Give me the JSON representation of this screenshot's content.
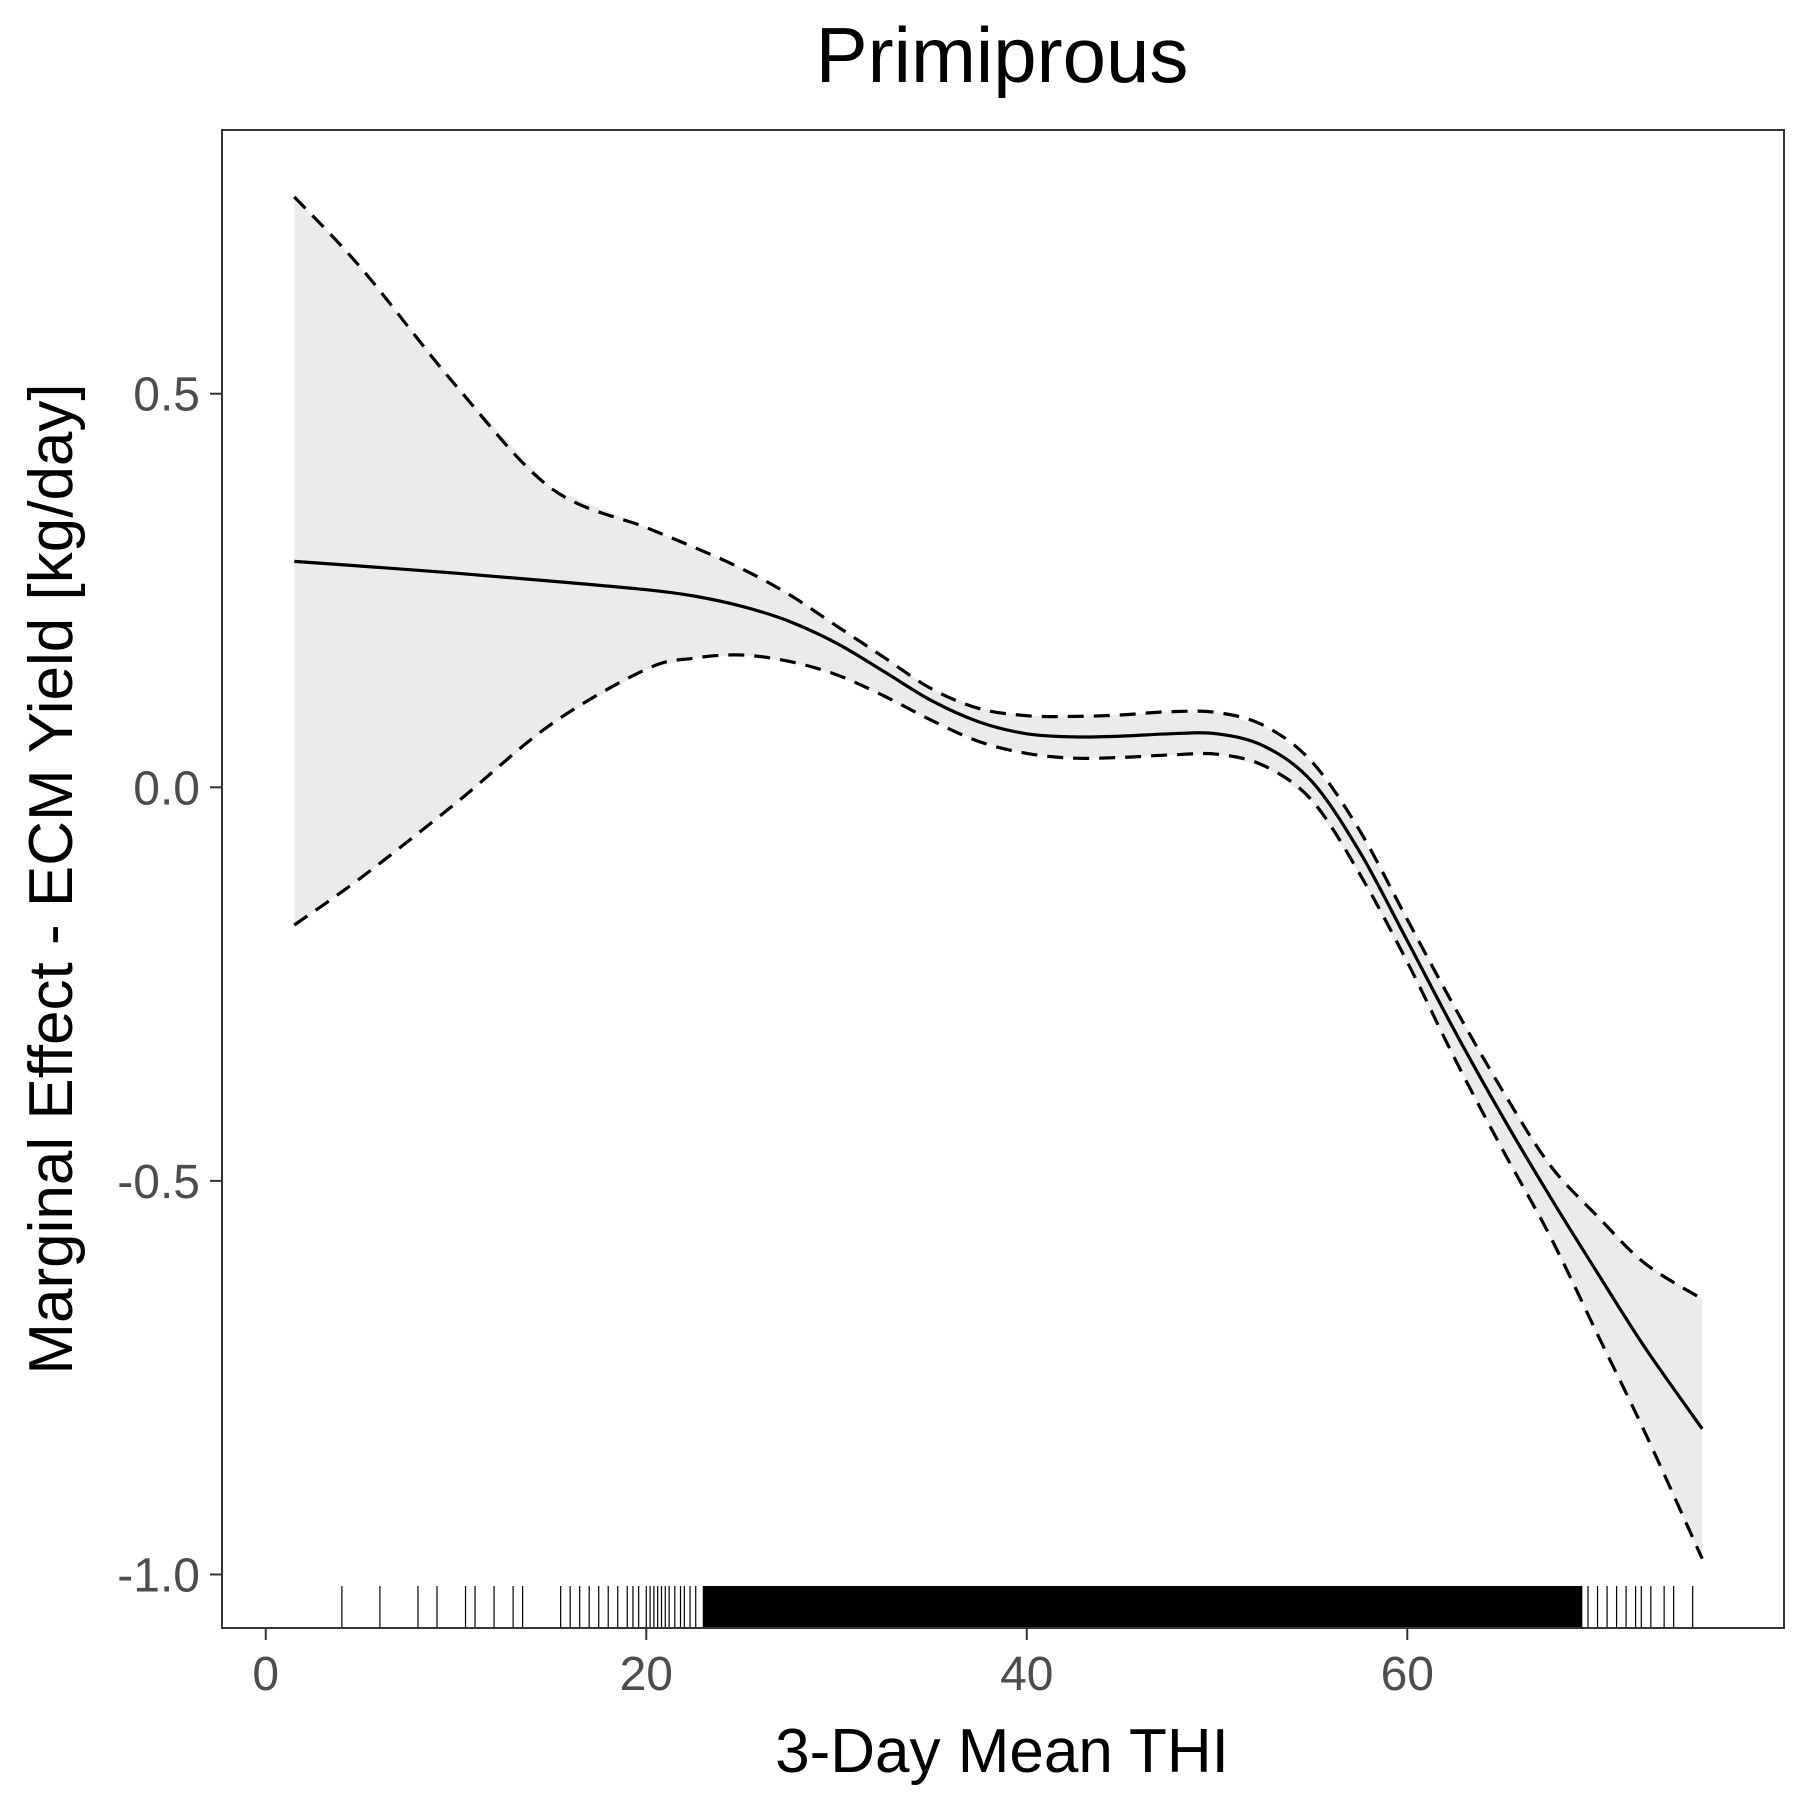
{
  "chart_data": {
    "type": "line",
    "title": "Primiprous",
    "xlabel": "3-Day Mean THI",
    "ylabel": "Marginal Effect - ECM Yield [kg/day]",
    "xlim": [
      -2.3,
      79.8
    ],
    "ylim": [
      -1.068,
      0.835
    ],
    "x_ticks": [
      0,
      20,
      40,
      60
    ],
    "y_ticks": [
      -1.0,
      -0.5,
      0.0,
      0.5
    ],
    "x_tick_labels": [
      "0",
      "20",
      "40",
      "60"
    ],
    "y_tick_labels": [
      "-1.0",
      "-0.5",
      "0.0",
      "0.5"
    ],
    "grid": false,
    "series": [
      {
        "role": "estimate",
        "style": "solid",
        "x": [
          1.5,
          5,
          10,
          15,
          20,
          22.5,
          25,
          27.5,
          30,
          32.5,
          35,
          37.5,
          40,
          42.5,
          45,
          47.5,
          50,
          52.5,
          55,
          57.5,
          60,
          62.5,
          65,
          67.5,
          70,
          72.5,
          75.5
        ],
        "y": [
          0.287,
          0.281,
          0.272,
          0.262,
          0.251,
          0.243,
          0.23,
          0.211,
          0.183,
          0.147,
          0.11,
          0.083,
          0.068,
          0.064,
          0.065,
          0.068,
          0.068,
          0.052,
          0.007,
          -0.082,
          -0.195,
          -0.31,
          -0.418,
          -0.52,
          -0.617,
          -0.712,
          -0.815
        ]
      },
      {
        "role": "upper-95-ci",
        "style": "dashed",
        "x": [
          1.5,
          5,
          10,
          15,
          20,
          22.5,
          25,
          27.5,
          30,
          32.5,
          35,
          37.5,
          40,
          42.5,
          45,
          47.5,
          50,
          52.5,
          55,
          57.5,
          60,
          62.5,
          65,
          67.5,
          70,
          72.5,
          75.5
        ],
        "y": [
          0.75,
          0.66,
          0.51,
          0.38,
          0.33,
          0.305,
          0.278,
          0.245,
          0.205,
          0.165,
          0.125,
          0.1,
          0.091,
          0.09,
          0.092,
          0.096,
          0.095,
          0.078,
          0.032,
          -0.055,
          -0.168,
          -0.28,
          -0.385,
          -0.48,
          -0.545,
          -0.605,
          -0.65
        ]
      },
      {
        "role": "lower-95-ci",
        "style": "dashed",
        "x": [
          1.5,
          5,
          10,
          15,
          20,
          22.5,
          25,
          27.5,
          30,
          32.5,
          35,
          37.5,
          40,
          42.5,
          45,
          47.5,
          50,
          52.5,
          55,
          57.5,
          60,
          62.5,
          65,
          67.5,
          70,
          72.5,
          75.5
        ],
        "y": [
          -0.175,
          -0.115,
          -0.02,
          0.08,
          0.15,
          0.164,
          0.168,
          0.16,
          0.143,
          0.116,
          0.085,
          0.058,
          0.043,
          0.037,
          0.038,
          0.041,
          0.042,
          0.027,
          -0.017,
          -0.11,
          -0.222,
          -0.345,
          -0.46,
          -0.57,
          -0.695,
          -0.82,
          -0.98
        ]
      }
    ],
    "rug_x": [
      4,
      6,
      8,
      9,
      10.5,
      11,
      12,
      13,
      13.5,
      15.5,
      16,
      16.5,
      17,
      17.5,
      18,
      18.5,
      19,
      19.3,
      19.6,
      20,
      20.2,
      20.4,
      20.6,
      20.8,
      21,
      21.2,
      21.5,
      21.8,
      22,
      22.3,
      22.6,
      23,
      24,
      25,
      26,
      27,
      28,
      29,
      30,
      31,
      32,
      33,
      34,
      35,
      36,
      37,
      38,
      39,
      40,
      41,
      42,
      43,
      44,
      45,
      46,
      47,
      48,
      49,
      50,
      51,
      52,
      53,
      54,
      55,
      56,
      57,
      58,
      59,
      60,
      61,
      62,
      63,
      64,
      65,
      66,
      67,
      68,
      69,
      69.5,
      70,
      70.5,
      71,
      71.5,
      72,
      72.3,
      72.8,
      73.5,
      74,
      75
    ]
  }
}
